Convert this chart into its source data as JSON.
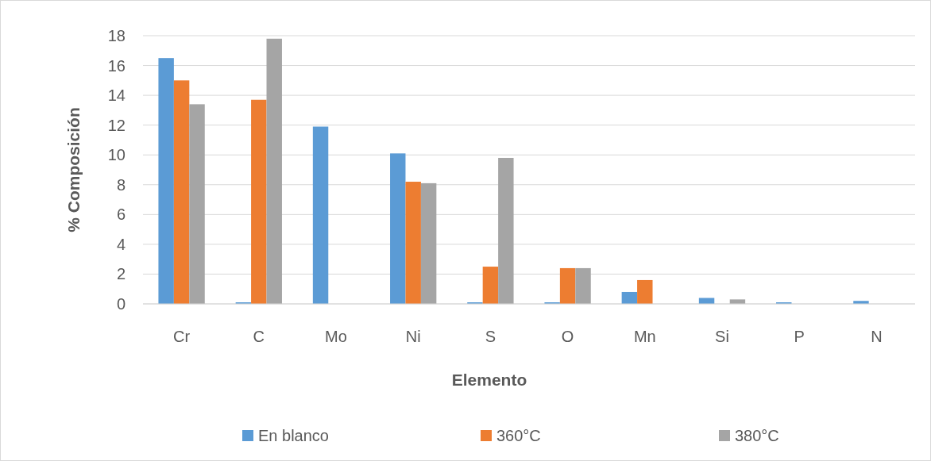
{
  "chart_data": {
    "type": "bar",
    "xlabel": "Elemento",
    "ylabel": "% Composición",
    "categories": [
      "Cr",
      "C",
      "Mo",
      "Ni",
      "S",
      "O",
      "Mn",
      "Si",
      "P",
      "N"
    ],
    "series": [
      {
        "name": "En blanco",
        "color": "#5b9bd5",
        "values": [
          16.5,
          0,
          11.9,
          10.1,
          0,
          0,
          0.8,
          0.4,
          0,
          0.2
        ]
      },
      {
        "name": "360°C",
        "color": "#ed7d31",
        "values": [
          15.0,
          13.7,
          null,
          8.2,
          2.5,
          2.4,
          1.6,
          null,
          null,
          null
        ]
      },
      {
        "name": "380°C",
        "color": "#a5a5a5",
        "values": [
          13.4,
          17.8,
          null,
          8.1,
          9.8,
          2.4,
          null,
          0.3,
          null,
          null
        ]
      }
    ],
    "ylim": [
      0,
      18
    ],
    "yticks": [
      0,
      2,
      4,
      6,
      8,
      10,
      12,
      14,
      16,
      18
    ],
    "grid": "y",
    "legend": "bottom"
  }
}
